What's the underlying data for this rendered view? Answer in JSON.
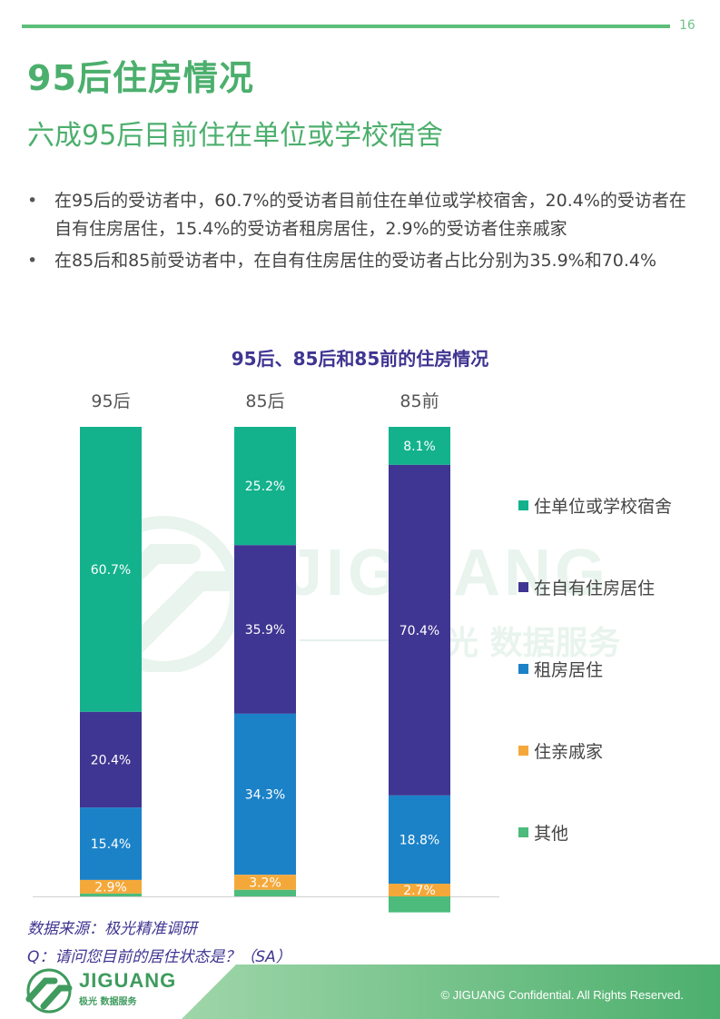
{
  "page": {
    "number": "16"
  },
  "header": {
    "title": "95后住房情况",
    "subtitle": "六成95后目前住在单位或学校宿舍"
  },
  "bullets": [
    "在95后的受访者中，60.7%的受访者目前住在单位或学校宿舍，20.4%的受访者在自有住房居住，15.4%的受访者租房居住，2.9%的受访者住亲戚家",
    "在85后和85前受访者中，在自有住房居住的受访者占比分别为35.9%和70.4%"
  ],
  "chart_data": {
    "type": "bar",
    "stacked": true,
    "title": "95后、85后和85前的住房情况",
    "categories": [
      "95后",
      "85后",
      "85前"
    ],
    "series": [
      {
        "name": "住单位或学校宿舍",
        "color": "#13b28c",
        "values": [
          60.7,
          25.2,
          8.1
        ]
      },
      {
        "name": "在自有住房居住",
        "color": "#3f3592",
        "values": [
          20.4,
          35.9,
          70.4
        ]
      },
      {
        "name": "租房居住",
        "color": "#1b82c8",
        "values": [
          15.4,
          34.3,
          18.8
        ]
      },
      {
        "name": "住亲戚家",
        "color": "#f5a83a",
        "values": [
          2.9,
          3.2,
          2.7
        ]
      },
      {
        "name": "其他",
        "color": "#4cbb7c",
        "values": [
          0.6,
          1.4,
          3.4
        ]
      }
    ],
    "data_labels": [
      [
        "60.7%",
        "25.2%",
        "8.1%"
      ],
      [
        "20.4%",
        "35.9%",
        "70.4%"
      ],
      [
        "15.4%",
        "34.3%",
        "18.8%"
      ],
      [
        "2.9%",
        "3.2%",
        "2.7%"
      ],
      [
        "",
        "",
        ""
      ]
    ],
    "ylim": [
      0,
      100
    ],
    "legend_position": "right"
  },
  "watermark": {
    "brand": "JIGUANG",
    "tagline": "极光 数据服务"
  },
  "source": {
    "line1": "数据来源：极光精准调研",
    "line2": "Q：请问您目前的居住状态是？（SA）"
  },
  "footer": {
    "logo_text": "JIGUANG",
    "logo_sub": "极光 数据服务",
    "copyright": "© JIGUANG  Confidential. All Rights Reserved."
  },
  "colors": {
    "accent": "#4caf6d",
    "chart_title": "#3f3592"
  }
}
